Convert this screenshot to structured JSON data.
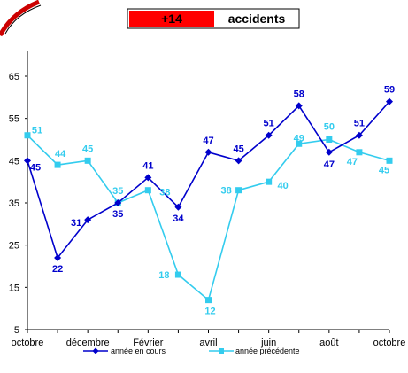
{
  "badge": {
    "value": "+14",
    "word": "accidents",
    "value_color": "#ff0000"
  },
  "colors": {
    "current": "#0000cc",
    "previous": "#33ccee",
    "corner_arc": "#cc0000"
  },
  "chart_data": {
    "type": "line",
    "x_labels": [
      "octobre",
      "décembre",
      "Février",
      "avril",
      "juin",
      "août",
      "octobre"
    ],
    "y_ticks": [
      5,
      15,
      25,
      35,
      45,
      55,
      65
    ],
    "ylim": [
      5,
      65
    ],
    "grid": false,
    "legend_position": "bottom",
    "series": [
      {
        "name": "année en cours",
        "marker": "diamond",
        "values": [
          45,
          22,
          31,
          35,
          41,
          34,
          47,
          45,
          51,
          58,
          47,
          51,
          59
        ]
      },
      {
        "name": "année précédente",
        "marker": "square",
        "values": [
          51,
          44,
          45,
          35,
          38,
          18,
          12,
          38,
          40,
          49,
          50,
          47,
          45
        ]
      }
    ]
  }
}
